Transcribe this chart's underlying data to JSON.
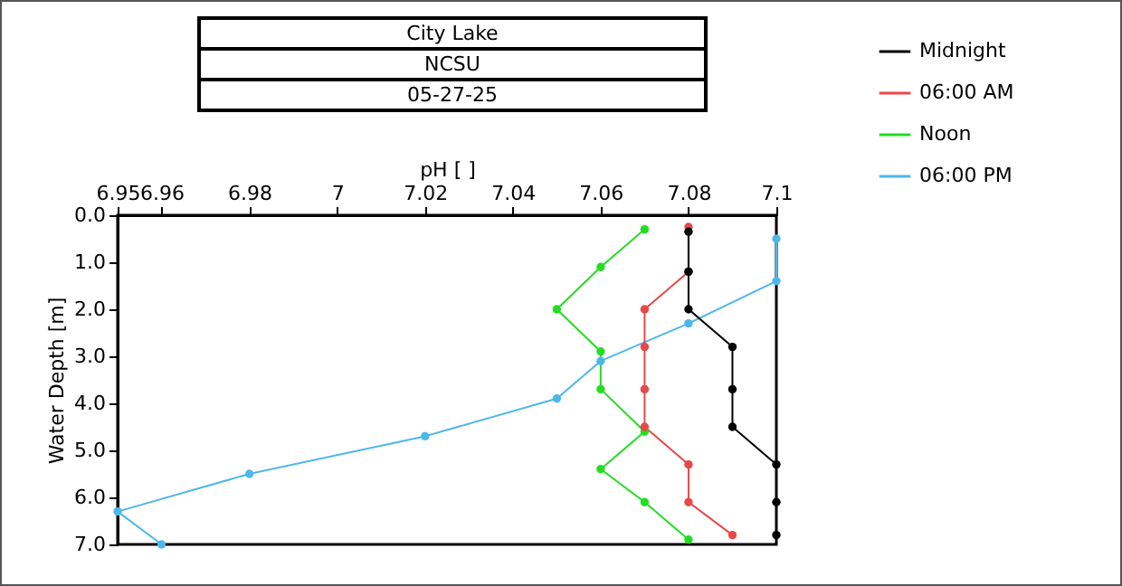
{
  "chart_data": {
    "type": "line",
    "title": "City Lake",
    "subtitle": "NCSU",
    "annotations": [
      "05-27-25"
    ],
    "xlabel": "pH [ ]",
    "ylabel": "Water Depth [m]",
    "xlim": [
      6.95,
      7.1
    ],
    "xticks": [
      6.95,
      6.96,
      6.98,
      7,
      7.02,
      7.04,
      7.06,
      7.08,
      7.1
    ],
    "ylim": [
      7,
      0
    ],
    "yticks": [
      {
        "value": 0,
        "label": "0.0"
      },
      {
        "value": 1,
        "label": "1.0"
      },
      {
        "value": 2,
        "label": "2.0"
      },
      {
        "value": 3,
        "label": "3.0"
      },
      {
        "value": 4,
        "label": "4.0"
      },
      {
        "value": 5,
        "label": "5.0"
      },
      {
        "value": 6,
        "label": "6.0"
      },
      {
        "value": 7,
        "label": "7.0"
      }
    ],
    "grid": false,
    "legend": "top right",
    "marker": "circle",
    "line_style": "solid",
    "series": [
      {
        "name": "Midnight",
        "color": "#000000",
        "x": [
          7.08,
          7.08,
          7.08,
          7.09,
          7.09,
          7.09,
          7.1,
          7.1,
          7.1
        ],
        "values": [
          0.35,
          1.2,
          2.0,
          2.8,
          3.7,
          4.5,
          5.3,
          6.1,
          6.8
        ]
      },
      {
        "name": "06:00 AM",
        "color": "#e84848",
        "x": [
          7.08,
          7.08,
          7.07,
          7.07,
          7.07,
          7.07,
          7.08,
          7.08,
          7.09
        ],
        "values": [
          0.25,
          1.2,
          2.0,
          2.8,
          3.7,
          4.5,
          5.3,
          6.1,
          6.8
        ]
      },
      {
        "name": "Noon",
        "color": "#22dd22",
        "x": [
          7.07,
          7.06,
          7.05,
          7.06,
          7.06,
          7.07,
          7.06,
          7.07,
          7.08
        ],
        "values": [
          0.3,
          1.1,
          2.0,
          2.9,
          3.7,
          4.6,
          5.4,
          6.1,
          6.9
        ]
      },
      {
        "name": "06:00 PM",
        "color": "#4db8e8",
        "x": [
          7.1,
          7.1,
          7.08,
          7.06,
          7.05,
          7.02,
          6.98,
          6.95,
          6.96
        ],
        "values": [
          0.5,
          1.4,
          2.3,
          3.1,
          3.9,
          4.7,
          5.5,
          6.3,
          7.0
        ]
      }
    ]
  }
}
